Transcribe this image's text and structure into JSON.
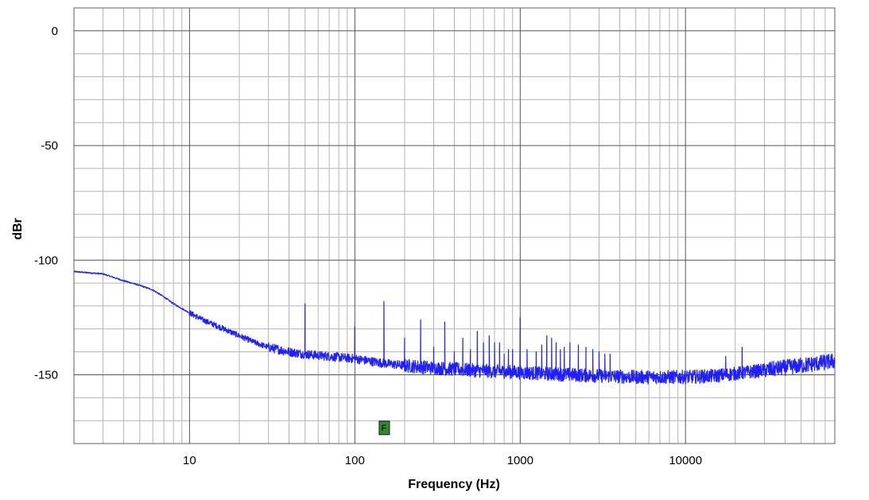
{
  "chart_data": {
    "type": "line",
    "title": "",
    "xlabel": "Frequency (Hz)",
    "ylabel": "dBr",
    "x_scale": "log",
    "xlim": [
      2,
      80000
    ],
    "ylim": [
      -180,
      10
    ],
    "grid": true,
    "x_ticks": [
      {
        "value": 10,
        "label": "10"
      },
      {
        "value": 100,
        "label": "100"
      },
      {
        "value": 1000,
        "label": "1000"
      },
      {
        "value": 10000,
        "label": "10000"
      }
    ],
    "y_ticks": [
      {
        "value": 0,
        "label": "0"
      },
      {
        "value": -50,
        "label": "-50"
      },
      {
        "value": -100,
        "label": "-100"
      },
      {
        "value": -150,
        "label": "-150"
      }
    ],
    "series": [
      {
        "color": "#1f1fff",
        "noise_floor": [
          [
            2,
            -105
          ],
          [
            3,
            -106
          ],
          [
            4,
            -109
          ],
          [
            5,
            -111
          ],
          [
            6,
            -113
          ],
          [
            7,
            -116
          ],
          [
            8,
            -119
          ],
          [
            10,
            -123
          ],
          [
            12,
            -126
          ],
          [
            15,
            -129
          ],
          [
            20,
            -133
          ],
          [
            25,
            -136
          ],
          [
            30,
            -138
          ],
          [
            40,
            -140
          ],
          [
            50,
            -141
          ],
          [
            70,
            -142
          ],
          [
            100,
            -143
          ],
          [
            150,
            -145
          ],
          [
            200,
            -146
          ],
          [
            300,
            -147
          ],
          [
            500,
            -148
          ],
          [
            1000,
            -149
          ],
          [
            2000,
            -150
          ],
          [
            5000,
            -151
          ],
          [
            10000,
            -151
          ],
          [
            15000,
            -150.5
          ],
          [
            20000,
            -149.5
          ],
          [
            30000,
            -148
          ],
          [
            50000,
            -146
          ],
          [
            80000,
            -144
          ]
        ],
        "peaks": [
          [
            50,
            -119
          ],
          [
            100,
            -129
          ],
          [
            150,
            -118
          ],
          [
            200,
            -134
          ],
          [
            250,
            -126
          ],
          [
            300,
            -138
          ],
          [
            350,
            -127
          ],
          [
            400,
            -140
          ],
          [
            450,
            -134
          ],
          [
            500,
            -139
          ],
          [
            550,
            -131
          ],
          [
            600,
            -136
          ],
          [
            650,
            -133
          ],
          [
            700,
            -136
          ],
          [
            750,
            -136
          ],
          [
            800,
            -141
          ],
          [
            850,
            -139
          ],
          [
            900,
            -139
          ],
          [
            1000,
            -125
          ],
          [
            1100,
            -139
          ],
          [
            1250,
            -140
          ],
          [
            1350,
            -137
          ],
          [
            1450,
            -133
          ],
          [
            1550,
            -134
          ],
          [
            1650,
            -136
          ],
          [
            1750,
            -139
          ],
          [
            1850,
            -138
          ],
          [
            2000,
            -136
          ],
          [
            2250,
            -137
          ],
          [
            2500,
            -138
          ],
          [
            2750,
            -139
          ],
          [
            3000,
            -140
          ],
          [
            3250,
            -141
          ],
          [
            3500,
            -141
          ],
          [
            17500,
            -142
          ],
          [
            22000,
            -138
          ]
        ]
      }
    ],
    "annotations": [
      {
        "label": "F",
        "x": 150,
        "y": -173,
        "color": "#2e8b2e"
      }
    ]
  }
}
